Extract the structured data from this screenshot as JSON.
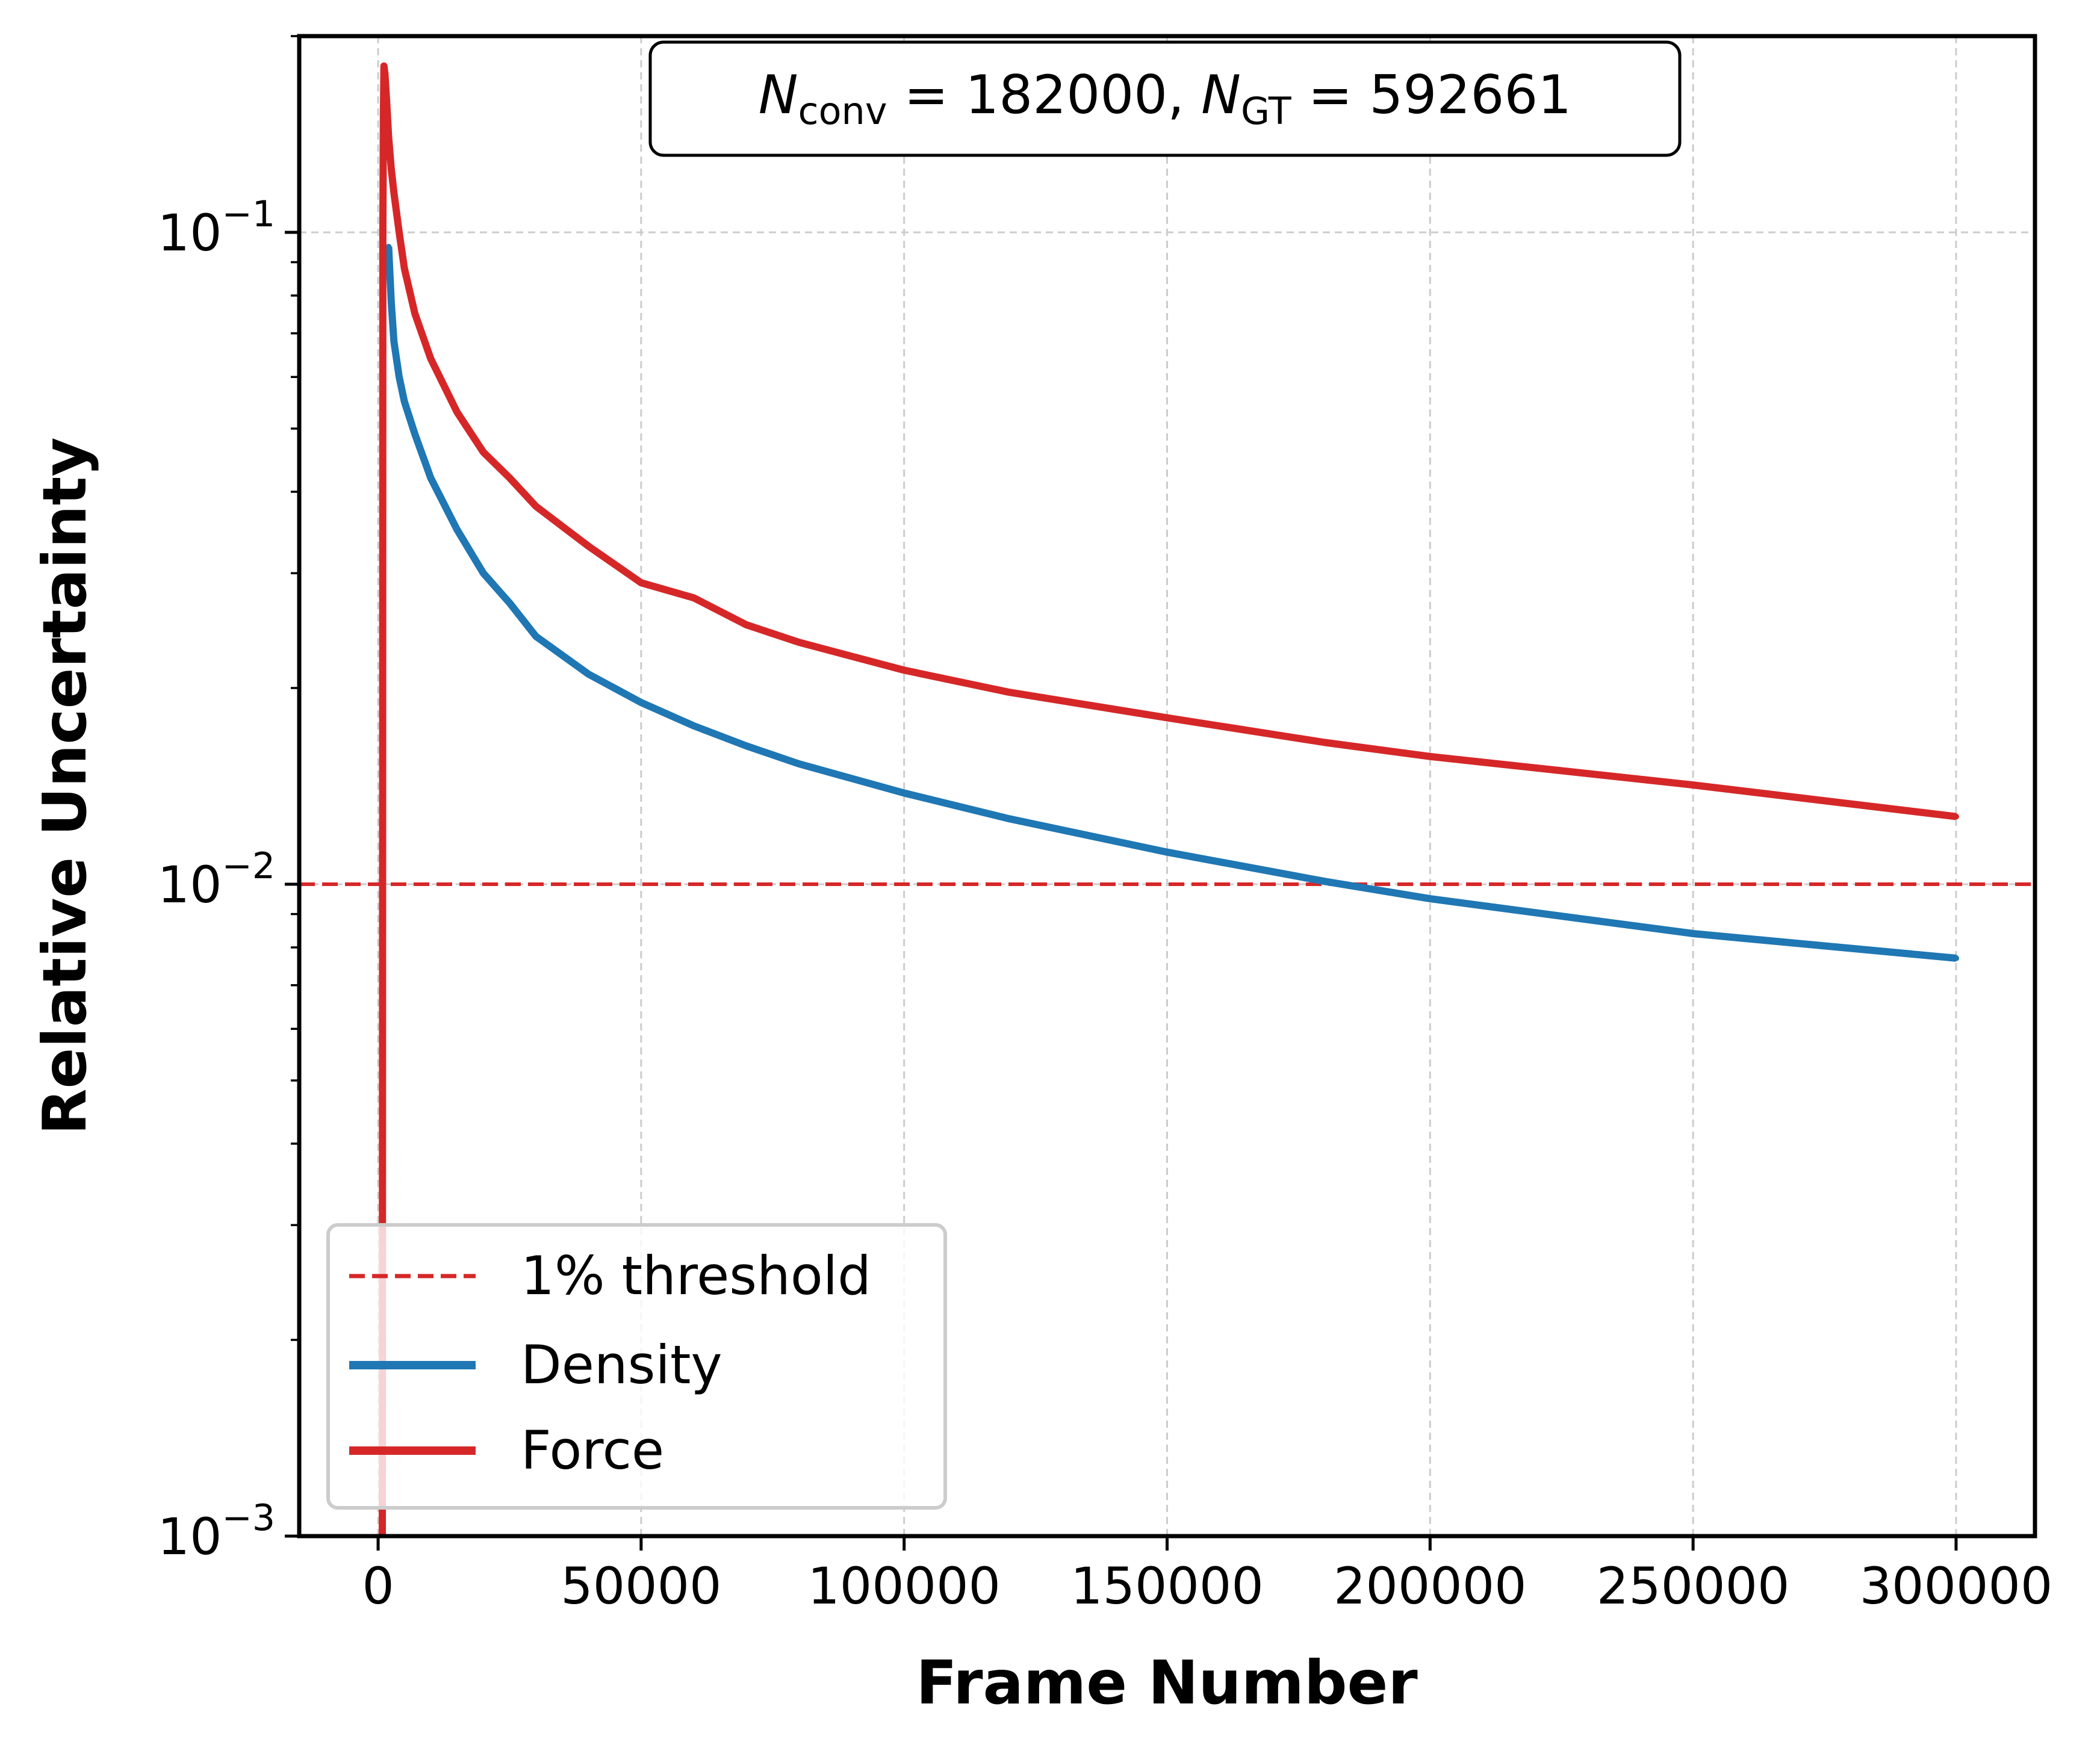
{
  "chart_data": {
    "type": "line",
    "xlabel": "Frame Number",
    "ylabel": "Relative Uncertainty",
    "xlim": [
      -15000,
      315000
    ],
    "ylim": [
      0.001,
      0.2
    ],
    "yscale": "log",
    "x_ticks": [
      0,
      50000,
      100000,
      150000,
      200000,
      250000,
      300000
    ],
    "x_tick_labels": [
      "0",
      "50000",
      "100000",
      "150000",
      "200000",
      "250000",
      "300000"
    ],
    "y_ticks": [
      0.001,
      0.01,
      0.1
    ],
    "y_tick_labels": [
      {
        "base": "10",
        "exp": "−3"
      },
      {
        "base": "10",
        "exp": "−2"
      },
      {
        "base": "10",
        "exp": "−1"
      }
    ],
    "grid": true,
    "legend_position": "bottom-left",
    "annotation": {
      "n_conv_symbol": "N",
      "n_conv_sub": "conv",
      "n_conv_value": "182000",
      "n_gt_symbol": "N",
      "n_gt_sub": "GT",
      "n_gt_value": "592661"
    },
    "threshold": {
      "name": "1% threshold",
      "value": 0.01,
      "color": "#d62728",
      "style": "dashed"
    },
    "series": [
      {
        "name": "Density",
        "color": "#1f77b4",
        "x": [
          2000,
          2500,
          3000,
          4000,
          5000,
          7000,
          10000,
          15000,
          20000,
          25000,
          30000,
          40000,
          50000,
          60000,
          70000,
          80000,
          100000,
          120000,
          150000,
          180000,
          200000,
          250000,
          300000
        ],
        "y": [
          0.095,
          0.078,
          0.068,
          0.06,
          0.055,
          0.049,
          0.042,
          0.035,
          0.03,
          0.027,
          0.024,
          0.021,
          0.019,
          0.0175,
          0.0163,
          0.0153,
          0.0138,
          0.0126,
          0.0112,
          0.0101,
          0.0095,
          0.0084,
          0.0077
        ]
      },
      {
        "name": "Force",
        "color": "#d62728",
        "x": [
          800,
          900,
          1000,
          1100,
          1300,
          1600,
          2000,
          2500,
          3000,
          4000,
          5000,
          7000,
          10000,
          15000,
          20000,
          25000,
          30000,
          40000,
          50000,
          60000,
          70000,
          80000,
          100000,
          120000,
          150000,
          180000,
          200000,
          250000,
          300000
        ],
        "y": [
          0.001,
          0.1,
          0.15,
          0.18,
          0.175,
          0.16,
          0.14,
          0.125,
          0.115,
          0.1,
          0.088,
          0.075,
          0.064,
          0.053,
          0.046,
          0.042,
          0.038,
          0.033,
          0.029,
          0.0275,
          0.025,
          0.0235,
          0.0213,
          0.0197,
          0.018,
          0.0165,
          0.0157,
          0.0142,
          0.0127
        ]
      }
    ]
  }
}
